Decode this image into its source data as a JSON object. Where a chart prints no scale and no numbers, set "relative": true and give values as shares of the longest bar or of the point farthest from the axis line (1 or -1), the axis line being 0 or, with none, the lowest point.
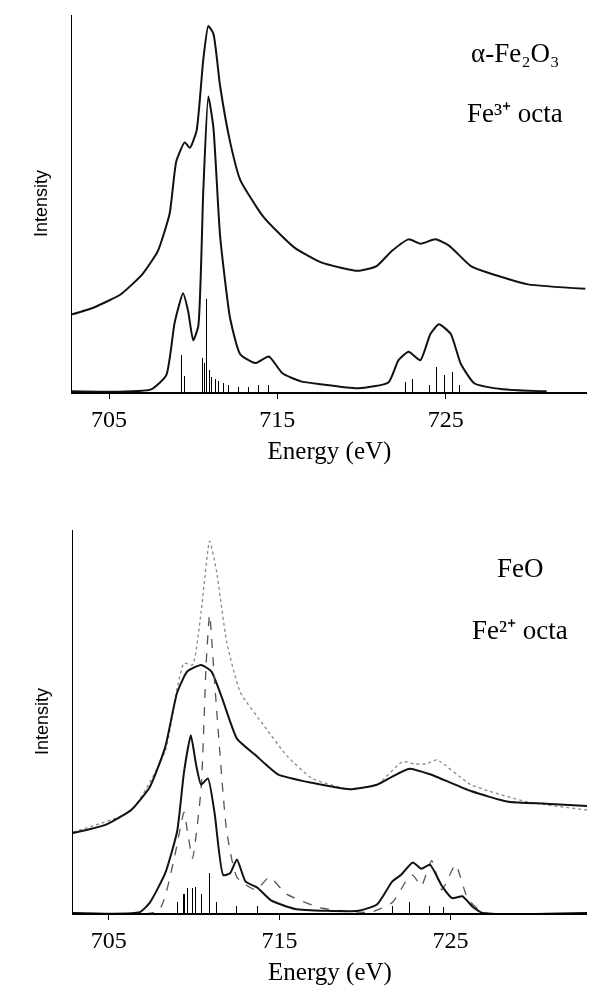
{
  "chart_data": [
    {
      "type": "line",
      "relative": true,
      "xlabel": "Energy (eV)",
      "ylabel": "Intensity",
      "xlim": [
        702.8,
        733.4
      ],
      "xticks": [
        705,
        715,
        725
      ],
      "tick_labels": "x",
      "annotations": [
        "α-Fe₂O₃",
        "Fe³⁺ octa"
      ],
      "series": [
        {
          "line_style": "solid",
          "color": "#111111",
          "x": [
            702.8,
            704.1,
            705.7,
            707.0,
            707.9,
            708.6,
            709.0,
            709.5,
            709.8,
            710.2,
            710.6,
            710.9,
            711.2,
            711.6,
            712.2,
            712.8,
            714.2,
            716.0,
            717.6,
            719.8,
            720.9,
            721.8,
            722.8,
            723.5,
            724.4,
            725.2,
            726.5,
            727.7,
            729.9,
            733.3
          ],
          "values": [
            0.212,
            0.231,
            0.267,
            0.323,
            0.385,
            0.487,
            0.631,
            0.682,
            0.667,
            0.713,
            0.908,
            1.0,
            0.979,
            0.836,
            0.682,
            0.579,
            0.477,
            0.395,
            0.354,
            0.331,
            0.344,
            0.385,
            0.417,
            0.405,
            0.417,
            0.4,
            0.344,
            0.323,
            0.294,
            0.282
          ]
        },
        {
          "line_style": "solid",
          "color": "#111111",
          "x": [
            702.8,
            707.5,
            708.4,
            708.9,
            709.4,
            709.7,
            710.0,
            710.3,
            710.6,
            710.9,
            711.2,
            711.6,
            712.2,
            712.8,
            713.7,
            714.5,
            715.3,
            716.4,
            717.6,
            719.8,
            721.6,
            722.2,
            722.8,
            723.5,
            724.1,
            724.6,
            725.3,
            725.9,
            726.7,
            728.3,
            731.0
          ],
          "values": [
            0.002,
            0.007,
            0.046,
            0.19,
            0.27,
            0.221,
            0.141,
            0.179,
            0.549,
            0.807,
            0.723,
            0.426,
            0.2,
            0.103,
            0.079,
            0.097,
            0.051,
            0.029,
            0.021,
            0.01,
            0.026,
            0.087,
            0.11,
            0.087,
            0.159,
            0.185,
            0.159,
            0.077,
            0.024,
            0.008,
            0.002
          ]
        },
        {
          "type": "bar",
          "color": "#000000",
          "x": [
            709.28,
            709.5,
            710.55,
            710.7,
            710.8,
            710.95,
            711.1,
            711.3,
            711.5,
            711.8,
            712.1,
            712.7,
            713.3,
            713.9,
            714.5,
            722.6,
            723.05,
            724.06,
            724.46,
            724.96,
            725.4,
            725.85
          ],
          "values": [
            0.101,
            0.045,
            0.093,
            0.08,
            0.253,
            0.06,
            0.042,
            0.035,
            0.03,
            0.025,
            0.02,
            0.015,
            0.015,
            0.018,
            0.02,
            0.026,
            0.036,
            0.02,
            0.067,
            0.046,
            0.056,
            0.02
          ]
        }
      ]
    },
    {
      "type": "line",
      "relative": true,
      "xlabel": "Energy (eV)",
      "ylabel": "Intensity",
      "xlim": [
        702.9,
        733.0
      ],
      "xticks": [
        705,
        715,
        725
      ],
      "tick_labels": "x",
      "annotations": [
        "FeO",
        "Fe²⁺ octa"
      ],
      "series": [
        {
          "line_style": "dotted",
          "color": "#888888",
          "x": [
            702.9,
            706.3,
            708.3,
            709.0,
            709.4,
            709.9,
            710.4,
            710.9,
            711.3,
            711.9,
            712.7,
            714.1,
            715.4,
            716.9,
            719.1,
            720.7,
            722.2,
            722.9,
            723.6,
            724.2,
            726.2,
            729.5,
            733.0
          ],
          "values": [
            0.218,
            0.275,
            0.435,
            0.605,
            0.672,
            0.667,
            0.808,
            1.0,
            0.921,
            0.729,
            0.593,
            0.503,
            0.424,
            0.362,
            0.333,
            0.345,
            0.407,
            0.401,
            0.401,
            0.412,
            0.345,
            0.299,
            0.277
          ]
        },
        {
          "line_style": "solid",
          "color": "#111111",
          "x": [
            702.9,
            704.8,
            706.3,
            707.4,
            708.3,
            709.0,
            709.6,
            710.4,
            711.0,
            711.6,
            712.5,
            713.6,
            714.9,
            716.9,
            719.1,
            720.7,
            721.6,
            722.6,
            723.8,
            726.2,
            728.4,
            730.6,
            733.0
          ],
          "values": [
            0.215,
            0.237,
            0.277,
            0.339,
            0.446,
            0.593,
            0.65,
            0.667,
            0.65,
            0.582,
            0.469,
            0.424,
            0.373,
            0.35,
            0.333,
            0.345,
            0.367,
            0.388,
            0.373,
            0.328,
            0.299,
            0.294,
            0.288
          ]
        },
        {
          "line_style": "dashed",
          "color": "#555555",
          "x": [
            702.9,
            707.9,
            708.8,
            709.4,
            709.6,
            709.9,
            710.4,
            710.7,
            710.9,
            711.2,
            711.9,
            712.5,
            713.6,
            714.4,
            715.4,
            717.4,
            720.3,
            721.6,
            722.4,
            722.8,
            723.3,
            723.9,
            724.5,
            725.3,
            726.0,
            726.9,
            733.0
          ],
          "values": [
            0,
            0.006,
            0.141,
            0.271,
            0.22,
            0.147,
            0.333,
            0.672,
            0.802,
            0.616,
            0.22,
            0.096,
            0.062,
            0.096,
            0.051,
            0.014,
            0.002,
            0.028,
            0.085,
            0.102,
            0.073,
            0.141,
            0.062,
            0.13,
            0.04,
            0.002,
            0
          ]
        },
        {
          "line_style": "solid",
          "color": "#111111",
          "x": [
            702.9,
            706.8,
            707.4,
            708.3,
            709.0,
            709.4,
            709.8,
            710.1,
            710.4,
            710.8,
            711.2,
            711.7,
            712.1,
            712.5,
            713.0,
            713.7,
            714.5,
            715.9,
            719.6,
            720.7,
            721.6,
            722.1,
            722.8,
            723.3,
            723.8,
            724.5,
            725.1,
            725.7,
            726.3,
            726.9,
            733.0
          ],
          "values": [
            0,
            0.002,
            0.028,
            0.107,
            0.22,
            0.379,
            0.478,
            0.401,
            0.345,
            0.362,
            0.266,
            0.102,
            0.107,
            0.144,
            0.085,
            0.068,
            0.034,
            0.011,
            0.006,
            0.023,
            0.085,
            0.102,
            0.136,
            0.119,
            0.13,
            0.073,
            0.04,
            0.045,
            0.017,
            0,
            0
          ]
        },
        {
          "type": "bar",
          "color": "#000000",
          "x": [
            709.0,
            709.4,
            709.6,
            709.9,
            710.1,
            710.4,
            710.9,
            711.3,
            712.5,
            713.7,
            721.6,
            722.6,
            723.8,
            724.6
          ],
          "values": [
            0.03,
            0.05,
            0.068,
            0.068,
            0.07,
            0.05,
            0.107,
            0.03,
            0.02,
            0.02,
            0.02,
            0.03,
            0.02,
            0.015
          ]
        }
      ]
    }
  ]
}
